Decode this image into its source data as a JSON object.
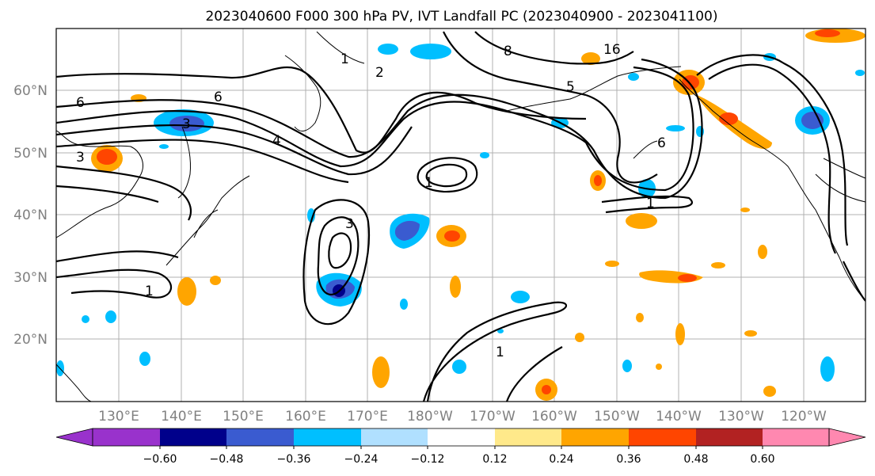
{
  "title": "2023040600 F000 300 hPa PV, IVT Landfall PC (2023040900 - 2023041100)",
  "map": {
    "lat_labels": [
      "60°N",
      "50°N",
      "40°N",
      "30°N",
      "20°N"
    ],
    "lon_labels": [
      "130°E",
      "140°E",
      "150°E",
      "160°E",
      "170°E",
      "180°W",
      "170°W",
      "160°W",
      "150°W",
      "140°W",
      "130°W",
      "120°W"
    ],
    "contour_labels": [
      "1",
      "2",
      "3",
      "6",
      "6",
      "4",
      "3",
      "3",
      "1",
      "1",
      "1",
      "6",
      "5",
      "8",
      "16",
      "1"
    ],
    "colors": {
      "neg_strong": "#00008b",
      "neg_medium": "#3a5bd0",
      "neg_light": "#00bfff",
      "neg_faint": "#b0e0ff",
      "pos_faint": "#ffe98a",
      "pos_light": "#ffa500",
      "pos_medium": "#ff4500",
      "pos_strong": "#b22222"
    }
  },
  "colorbar": {
    "tick_labels": [
      "−0.60",
      "−0.48",
      "−0.36",
      "−0.24",
      "−0.12",
      "0.12",
      "0.24",
      "0.36",
      "0.48",
      "0.60"
    ],
    "colors": [
      "#9932cc",
      "#00008b",
      "#3a5bd0",
      "#00bfff",
      "#b0e0ff",
      "#ffffff",
      "#ffe98a",
      "#ffa500",
      "#ff4500",
      "#b22222",
      "#ff88b0"
    ]
  }
}
